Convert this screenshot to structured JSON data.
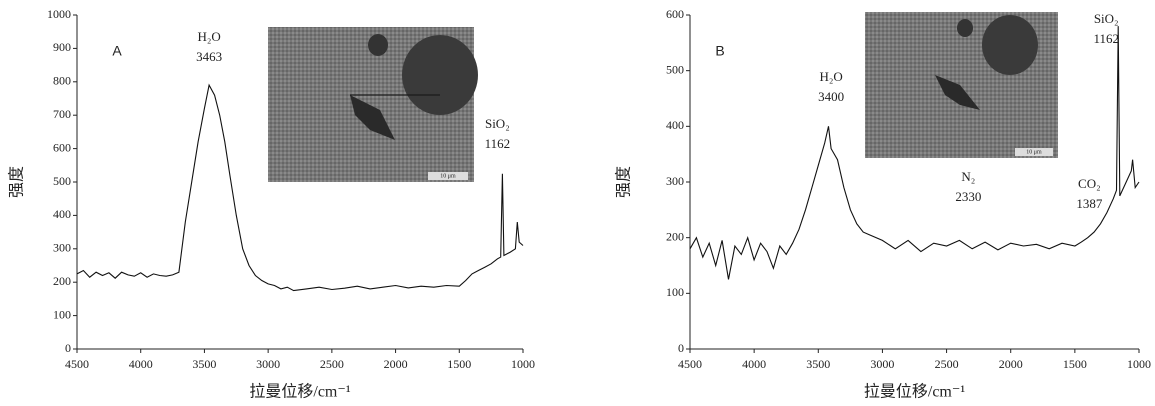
{
  "chart_data": [
    {
      "type": "line",
      "panel_label": "A",
      "y_label": "强度",
      "x_label": "拉曼位移/cm⁻¹",
      "color": "#111111",
      "inset_scale_label": "10 μm",
      "xlim": [
        4500,
        1000
      ],
      "xticks": [
        4500,
        4000,
        3500,
        3000,
        2500,
        2000,
        1500,
        1000
      ],
      "ylim": [
        0,
        1000
      ],
      "yticks": [
        0,
        100,
        200,
        300,
        400,
        500,
        600,
        700,
        800,
        900,
        1000
      ],
      "annotations": [
        {
          "text": "H₂O",
          "wavenumber": 3463
        },
        {
          "text": "SiO₂",
          "wavenumber": 1162
        }
      ],
      "x": [
        4500,
        4450,
        4400,
        4350,
        4300,
        4250,
        4200,
        4150,
        4100,
        4050,
        4000,
        3950,
        3900,
        3850,
        3800,
        3750,
        3700,
        3650,
        3600,
        3550,
        3500,
        3463,
        3420,
        3380,
        3340,
        3300,
        3250,
        3200,
        3150,
        3100,
        3050,
        3000,
        2950,
        2900,
        2850,
        2800,
        2700,
        2600,
        2500,
        2400,
        2300,
        2200,
        2100,
        2000,
        1900,
        1800,
        1700,
        1600,
        1500,
        1450,
        1400,
        1350,
        1300,
        1250,
        1200,
        1175,
        1162,
        1150,
        1100,
        1060,
        1045,
        1030,
        1000
      ],
      "values": [
        225,
        235,
        215,
        230,
        220,
        228,
        212,
        230,
        222,
        218,
        228,
        215,
        225,
        220,
        218,
        222,
        230,
        380,
        500,
        620,
        720,
        790,
        760,
        700,
        620,
        520,
        400,
        300,
        250,
        220,
        205,
        195,
        190,
        180,
        185,
        175,
        180,
        185,
        178,
        182,
        188,
        180,
        185,
        190,
        183,
        188,
        185,
        190,
        188,
        205,
        225,
        235,
        245,
        255,
        270,
        275,
        525,
        280,
        290,
        300,
        380,
        320,
        310
      ]
    },
    {
      "type": "line",
      "panel_label": "B",
      "y_label": "强度",
      "x_label": "拉曼位移/cm⁻¹",
      "color": "#111111",
      "inset_scale_label": "10 μm",
      "xlim": [
        4500,
        1000
      ],
      "xticks": [
        4500,
        4000,
        3500,
        3000,
        2500,
        2000,
        1500,
        1000
      ],
      "ylim": [
        0,
        600
      ],
      "yticks": [
        0,
        100,
        200,
        300,
        400,
        500,
        600
      ],
      "annotations": [
        {
          "text": "H₂O",
          "wavenumber": 3400
        },
        {
          "text": "N₂",
          "wavenumber": 2330
        },
        {
          "text": "CO₂",
          "wavenumber": 1387
        },
        {
          "text": "SiO₂",
          "wavenumber": 1162
        }
      ],
      "x": [
        4500,
        4450,
        4400,
        4350,
        4300,
        4250,
        4200,
        4150,
        4100,
        4050,
        4000,
        3950,
        3900,
        3850,
        3800,
        3750,
        3700,
        3650,
        3600,
        3550,
        3500,
        3450,
        3420,
        3400,
        3350,
        3300,
        3250,
        3200,
        3150,
        3100,
        3000,
        2900,
        2800,
        2700,
        2600,
        2500,
        2400,
        2300,
        2200,
        2100,
        2000,
        1900,
        1800,
        1700,
        1600,
        1500,
        1450,
        1400,
        1350,
        1300,
        1250,
        1200,
        1175,
        1162,
        1150,
        1100,
        1060,
        1050,
        1030,
        1000
      ],
      "values": [
        180,
        200,
        165,
        190,
        150,
        195,
        125,
        185,
        170,
        200,
        160,
        190,
        175,
        145,
        185,
        170,
        190,
        215,
        250,
        290,
        330,
        370,
        400,
        360,
        340,
        290,
        250,
        225,
        210,
        205,
        195,
        180,
        195,
        175,
        190,
        185,
        195,
        180,
        192,
        178,
        190,
        185,
        188,
        180,
        190,
        185,
        192,
        200,
        210,
        225,
        245,
        270,
        285,
        580,
        275,
        300,
        320,
        340,
        290,
        300
      ]
    }
  ]
}
